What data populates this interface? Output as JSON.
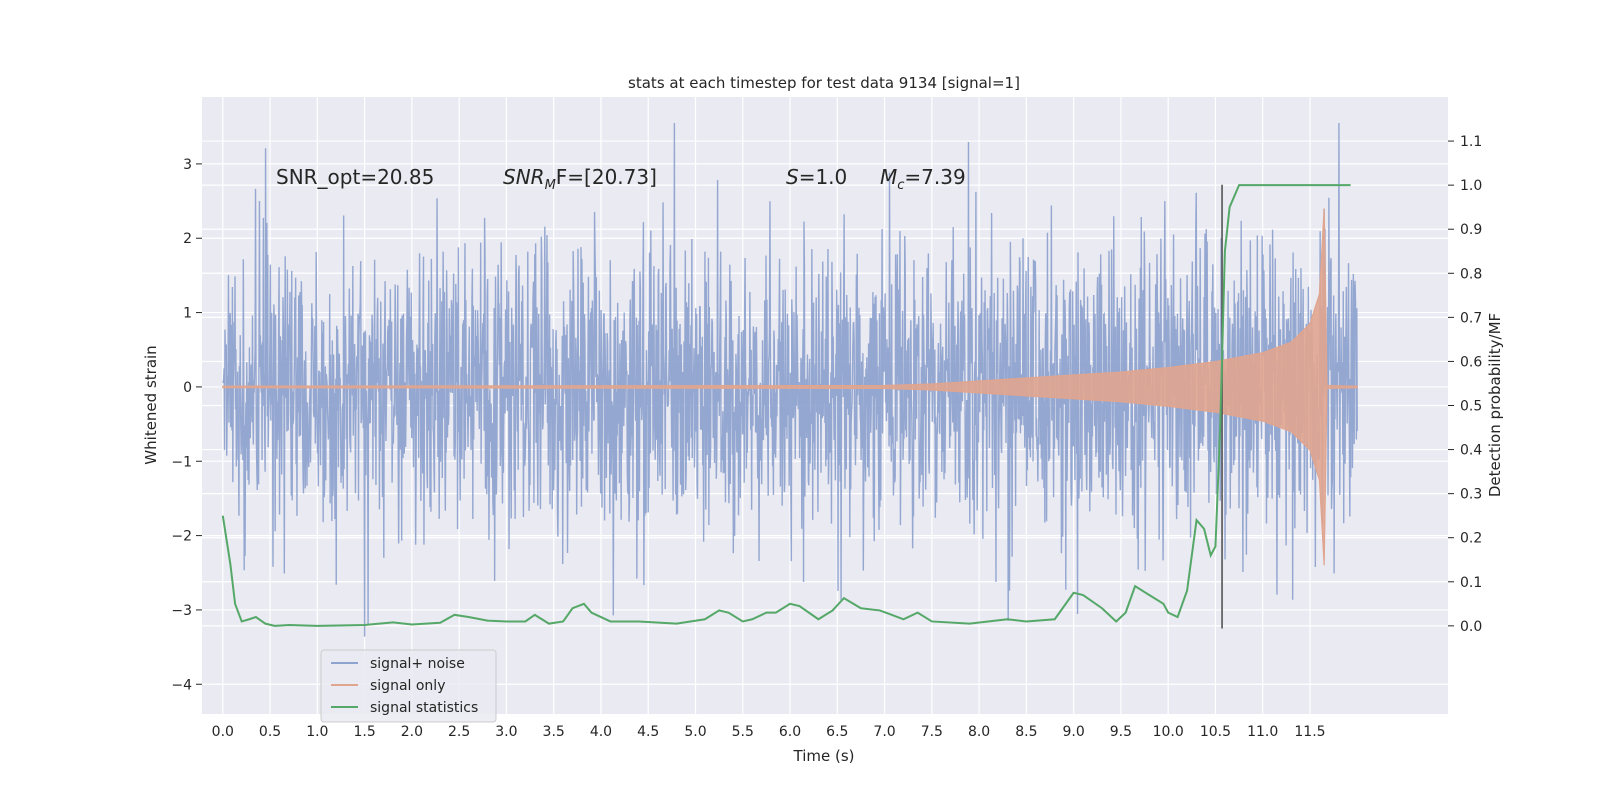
{
  "chart_data": {
    "type": "line",
    "title": "stats at each timestep for test data 9134 [signal=1]",
    "xlabel": "Time (s)",
    "ylabel_left": "Whitened strain",
    "ylabel_right": "Detection probability/MF",
    "xlim": [
      -0.22,
      12.96
    ],
    "ylim_left": [
      -4.4,
      3.9
    ],
    "ylim_right": [
      -0.2,
      1.2
    ],
    "x_ticks": [
      0.0,
      0.5,
      1.0,
      1.5,
      2.0,
      2.5,
      3.0,
      3.5,
      4.0,
      4.5,
      5.0,
      5.5,
      6.0,
      6.5,
      7.0,
      7.5,
      8.0,
      8.5,
      9.0,
      9.5,
      10.0,
      10.5,
      11.0,
      11.5
    ],
    "x_tick_labels": [
      "0.0",
      "0.5",
      "1.0",
      "1.5",
      "2.0",
      "2.5",
      "3.0",
      "3.5",
      "4.0",
      "4.5",
      "5.0",
      "5.5",
      "6.0",
      "6.5",
      "7.0",
      "7.5",
      "8.0",
      "8.5",
      "9.0",
      "9.5",
      "10.0",
      "10.5",
      "11.0",
      "11.5"
    ],
    "y_left_ticks": [
      -4,
      -3,
      -2,
      -1,
      0,
      1,
      2,
      3
    ],
    "y_left_tick_labels": [
      "−4",
      "−3",
      "−2",
      "−1",
      "0",
      "1",
      "2",
      "3"
    ],
    "y_right_ticks": [
      0.0,
      0.1,
      0.2,
      0.3,
      0.4,
      0.5,
      0.6,
      0.7,
      0.8,
      0.9,
      1.0,
      1.1
    ],
    "y_right_tick_labels": [
      "0.0",
      "0.1",
      "0.2",
      "0.3",
      "0.4",
      "0.5",
      "0.6",
      "0.7",
      "0.8",
      "0.9",
      "1.0",
      "1.1"
    ],
    "grid": true,
    "legend_position": "lower-left",
    "annotations": {
      "snr_opt": "SNR_opt=20.85",
      "snr_mf_main": "SNR",
      "snr_mf_sub": "M",
      "snr_mf_rest": "F=[20.73]",
      "s_main": "S",
      "s_rest": "=1.0",
      "mc_main": "M",
      "mc_sub": "c",
      "mc_rest": "=7.39"
    },
    "series": [
      {
        "name": "signal+ noise",
        "axis": "left",
        "color": "#8fa3cf",
        "noise_std": 1.0,
        "x_range": [
          0.0,
          12.0
        ],
        "min": -4.1,
        "max": 3.55
      },
      {
        "name": "signal only",
        "axis": "left",
        "color": "#e0a58f",
        "envelope": {
          "x": [
            0.0,
            7.0,
            7.5,
            8.0,
            8.5,
            9.0,
            9.5,
            10.0,
            10.5,
            11.0,
            11.3,
            11.5,
            11.6,
            11.65,
            11.68,
            12.0
          ],
          "amp": [
            0.01,
            0.02,
            0.04,
            0.08,
            0.12,
            0.16,
            0.2,
            0.26,
            0.34,
            0.46,
            0.6,
            0.85,
            1.25,
            2.4,
            0.02,
            0.01
          ]
        }
      },
      {
        "name": "signal statistics",
        "axis": "right",
        "color": "#55a868",
        "x": [
          0.0,
          0.08,
          0.13,
          0.2,
          0.28,
          0.35,
          0.45,
          0.55,
          0.7,
          1.0,
          1.5,
          1.8,
          2.0,
          2.3,
          2.45,
          2.6,
          2.8,
          3.0,
          3.2,
          3.3,
          3.45,
          3.6,
          3.7,
          3.82,
          3.9,
          4.1,
          4.4,
          4.8,
          5.1,
          5.25,
          5.35,
          5.5,
          5.6,
          5.75,
          5.85,
          6.0,
          6.1,
          6.3,
          6.45,
          6.57,
          6.75,
          6.95,
          7.2,
          7.35,
          7.5,
          7.9,
          8.3,
          8.5,
          8.8,
          9.0,
          9.1,
          9.3,
          9.45,
          9.55,
          9.65,
          9.8,
          9.95,
          10.0,
          10.1,
          10.2,
          10.3,
          10.38,
          10.45,
          10.5,
          10.55,
          10.6,
          10.65,
          10.75,
          11.0,
          11.5,
          11.93
        ],
        "y": [
          0.25,
          0.14,
          0.05,
          0.01,
          0.015,
          0.02,
          0.005,
          0.0,
          0.002,
          0.0,
          0.002,
          0.008,
          0.003,
          0.007,
          0.025,
          0.02,
          0.012,
          0.01,
          0.01,
          0.025,
          0.005,
          0.01,
          0.04,
          0.05,
          0.03,
          0.01,
          0.01,
          0.005,
          0.015,
          0.035,
          0.03,
          0.01,
          0.015,
          0.03,
          0.03,
          0.05,
          0.045,
          0.015,
          0.035,
          0.063,
          0.04,
          0.035,
          0.015,
          0.03,
          0.01,
          0.005,
          0.015,
          0.01,
          0.015,
          0.075,
          0.07,
          0.04,
          0.01,
          0.03,
          0.09,
          0.07,
          0.05,
          0.03,
          0.02,
          0.08,
          0.24,
          0.22,
          0.16,
          0.18,
          0.45,
          0.85,
          0.95,
          1.0,
          1.0,
          1.0,
          1.0
        ]
      }
    ],
    "vertical_line": {
      "x": 10.57,
      "y_bottom": -3.25,
      "y_top": 2.72,
      "color": "#555555"
    }
  },
  "colors": {
    "axes_background": "#eaeaf2",
    "grid": "#ffffff",
    "text": "#262626"
  }
}
